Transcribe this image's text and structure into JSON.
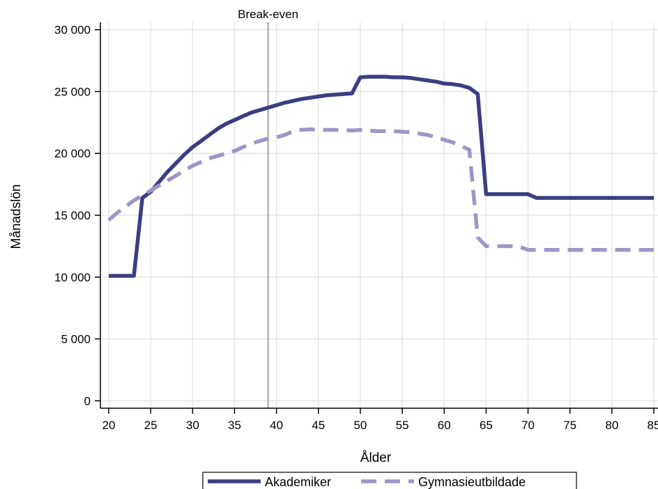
{
  "chart_data": {
    "type": "line",
    "title": "",
    "xlabel": "Ålder",
    "ylabel": "Månadslön",
    "xlim": [
      19,
      85.5
    ],
    "ylim": [
      -600,
      30600
    ],
    "x_ticks": [
      20,
      25,
      30,
      35,
      40,
      45,
      50,
      55,
      60,
      65,
      70,
      75,
      80,
      85
    ],
    "y_ticks": [
      0,
      5000,
      10000,
      15000,
      20000,
      25000,
      30000
    ],
    "y_tick_labels": [
      "0",
      "5 000",
      "10 000",
      "15 000",
      "20 000",
      "25 000",
      "30 000"
    ],
    "grid": true,
    "legend_position": "bottom",
    "annotations": [
      {
        "type": "vline",
        "x": 39,
        "label": "Break-even",
        "color": "#888888"
      }
    ],
    "series": [
      {
        "name": "Akademiker",
        "color": "#3b3e82",
        "style": "solid",
        "points": [
          [
            20,
            10100
          ],
          [
            23,
            10100
          ],
          [
            24,
            16400
          ],
          [
            25,
            16900
          ],
          [
            26,
            17700
          ],
          [
            27,
            18500
          ],
          [
            28,
            19200
          ],
          [
            29,
            19900
          ],
          [
            30,
            20500
          ],
          [
            31,
            21000
          ],
          [
            32,
            21500
          ],
          [
            33,
            22000
          ],
          [
            34,
            22400
          ],
          [
            35,
            22700
          ],
          [
            36,
            23000
          ],
          [
            37,
            23300
          ],
          [
            38,
            23500
          ],
          [
            39,
            23700
          ],
          [
            40,
            23900
          ],
          [
            41,
            24100
          ],
          [
            42,
            24250
          ],
          [
            43,
            24400
          ],
          [
            44,
            24500
          ],
          [
            45,
            24600
          ],
          [
            46,
            24700
          ],
          [
            47,
            24750
          ],
          [
            48,
            24800
          ],
          [
            49,
            24850
          ],
          [
            50,
            26150
          ],
          [
            51,
            26200
          ],
          [
            52,
            26200
          ],
          [
            53,
            26200
          ],
          [
            54,
            26150
          ],
          [
            55,
            26150
          ],
          [
            56,
            26100
          ],
          [
            57,
            26000
          ],
          [
            58,
            25900
          ],
          [
            59,
            25800
          ],
          [
            60,
            25650
          ],
          [
            61,
            25600
          ],
          [
            62,
            25500
          ],
          [
            63,
            25300
          ],
          [
            64,
            24800
          ],
          [
            65,
            16700
          ],
          [
            66,
            16700
          ],
          [
            67,
            16700
          ],
          [
            68,
            16700
          ],
          [
            69,
            16700
          ],
          [
            70,
            16700
          ],
          [
            71,
            16400
          ],
          [
            72,
            16400
          ],
          [
            75,
            16400
          ],
          [
            80,
            16400
          ],
          [
            85,
            16400
          ]
        ]
      },
      {
        "name": "Gymnasieutbildade",
        "color": "#9d97c8",
        "style": "dashed",
        "points": [
          [
            20,
            14600
          ],
          [
            21,
            15200
          ],
          [
            22,
            15700
          ],
          [
            23,
            16200
          ],
          [
            24,
            16600
          ],
          [
            25,
            17000
          ],
          [
            26,
            17400
          ],
          [
            27,
            17800
          ],
          [
            28,
            18200
          ],
          [
            29,
            18600
          ],
          [
            30,
            19000
          ],
          [
            31,
            19300
          ],
          [
            32,
            19600
          ],
          [
            33,
            19800
          ],
          [
            34,
            20000
          ],
          [
            35,
            20200
          ],
          [
            36,
            20500
          ],
          [
            37,
            20800
          ],
          [
            38,
            21000
          ],
          [
            39,
            21200
          ],
          [
            40,
            21300
          ],
          [
            41,
            21500
          ],
          [
            42,
            21800
          ],
          [
            43,
            21900
          ],
          [
            44,
            21950
          ],
          [
            45,
            21900
          ],
          [
            46,
            21900
          ],
          [
            47,
            21900
          ],
          [
            48,
            21900
          ],
          [
            49,
            21850
          ],
          [
            50,
            21900
          ],
          [
            51,
            21850
          ],
          [
            52,
            21800
          ],
          [
            53,
            21800
          ],
          [
            54,
            21800
          ],
          [
            55,
            21750
          ],
          [
            56,
            21700
          ],
          [
            57,
            21600
          ],
          [
            58,
            21500
          ],
          [
            59,
            21300
          ],
          [
            60,
            21100
          ],
          [
            61,
            20900
          ],
          [
            62,
            20600
          ],
          [
            63,
            20300
          ],
          [
            64,
            13200
          ],
          [
            65,
            12500
          ],
          [
            66,
            12500
          ],
          [
            67,
            12500
          ],
          [
            68,
            12500
          ],
          [
            69,
            12450
          ],
          [
            70,
            12200
          ],
          [
            71,
            12200
          ],
          [
            75,
            12200
          ],
          [
            80,
            12200
          ],
          [
            85,
            12200
          ]
        ]
      }
    ]
  }
}
